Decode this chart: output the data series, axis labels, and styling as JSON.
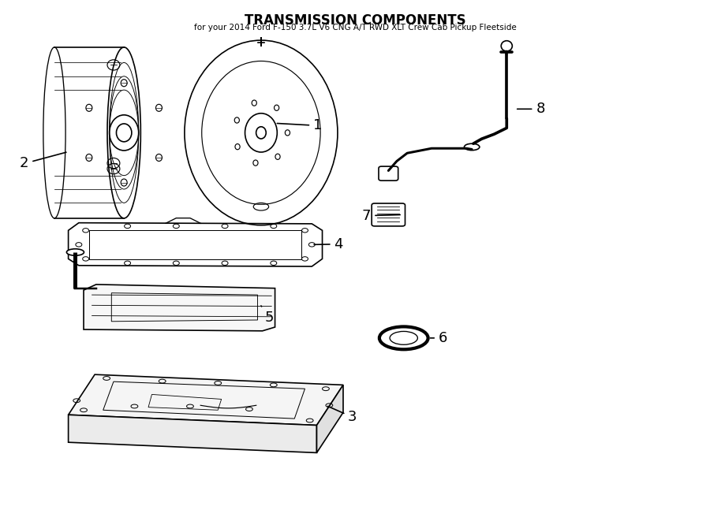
{
  "title": "TRANSMISSION COMPONENTS",
  "subtitle": "for your 2014 Ford F-150 3.7L V6 CNG A/T RWD XLT Crew Cab Pickup Fleetside",
  "background_color": "#ffffff",
  "line_color": "#000000",
  "line_width": 1.2
}
